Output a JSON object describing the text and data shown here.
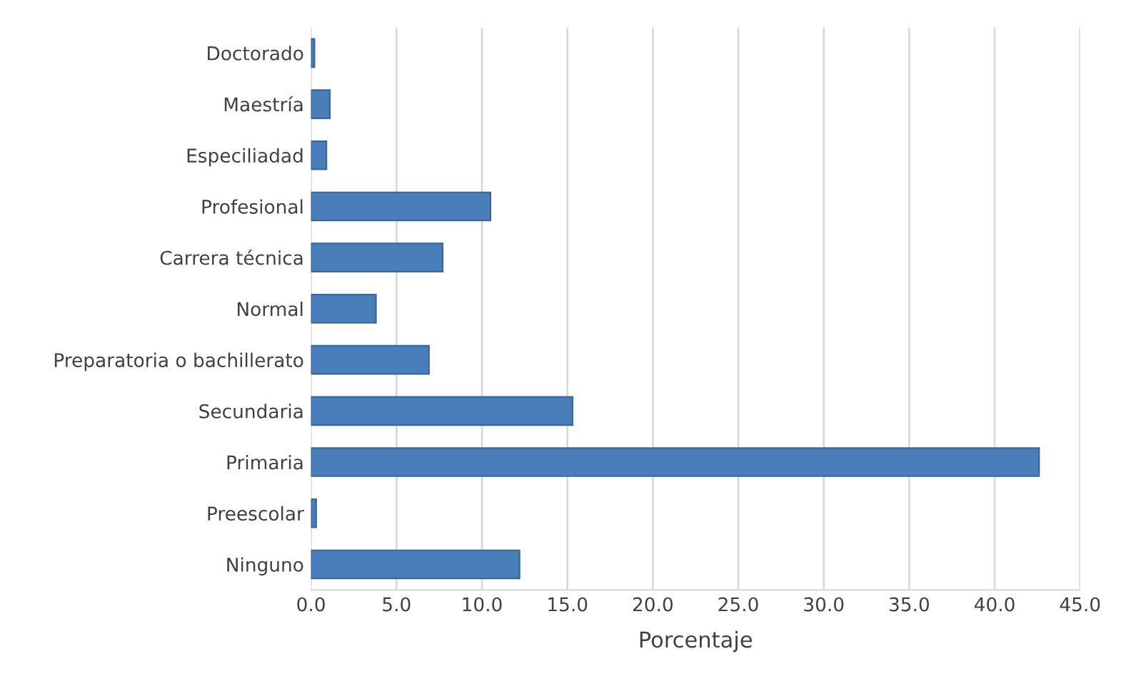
{
  "chart_data": {
    "type": "bar",
    "orientation": "horizontal",
    "xlabel": "Porcentaje",
    "categories": [
      "Doctorado",
      "Maestría",
      "Especiliadad",
      "Profesional",
      "Carrera técnica",
      "Normal",
      "Preparatoria o bachillerato",
      "Secundaria",
      "Primaria",
      "Preescolar",
      "Ninguno"
    ],
    "values": [
      0.2,
      1.1,
      0.9,
      10.5,
      7.7,
      3.8,
      6.9,
      15.3,
      42.6,
      0.3,
      12.2
    ],
    "color": "#4a7ebb",
    "xlim": [
      0,
      45
    ],
    "xticks": [
      {
        "value": 0,
        "label": "0.0"
      },
      {
        "value": 5,
        "label": "5.0"
      },
      {
        "value": 10,
        "label": "10.0"
      },
      {
        "value": 15,
        "label": "15.0"
      },
      {
        "value": 20,
        "label": "20.0"
      },
      {
        "value": 25,
        "label": "25.0"
      },
      {
        "value": 30,
        "label": "30.0"
      },
      {
        "value": 35,
        "label": "35.0"
      },
      {
        "value": 40,
        "label": "40.0"
      },
      {
        "value": 45,
        "label": "45.0"
      }
    ],
    "grid": "x"
  }
}
